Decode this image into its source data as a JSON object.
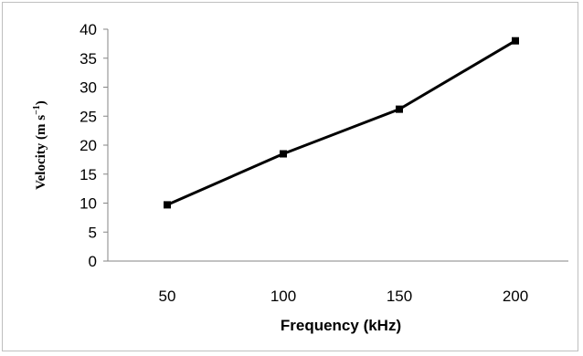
{
  "chart_data": {
    "type": "line",
    "x": [
      50,
      100,
      150,
      200
    ],
    "series": [
      {
        "values": [
          9.7,
          18.5,
          26.2,
          38
        ]
      }
    ],
    "xlabel": "Frequency (kHz)",
    "ylabel_main": "Velocity (m s",
    "ylabel_sup": "−1",
    "ylabel_tail": ")",
    "ylim": [
      0,
      40
    ],
    "yticks": [
      "0",
      "5",
      "10",
      "15",
      "20",
      "25",
      "30",
      "35",
      "40"
    ],
    "xticks": [
      "50",
      "100",
      "150",
      "200"
    ],
    "grid": false,
    "legend": "none",
    "line_color": "#000000",
    "marker": "square"
  }
}
